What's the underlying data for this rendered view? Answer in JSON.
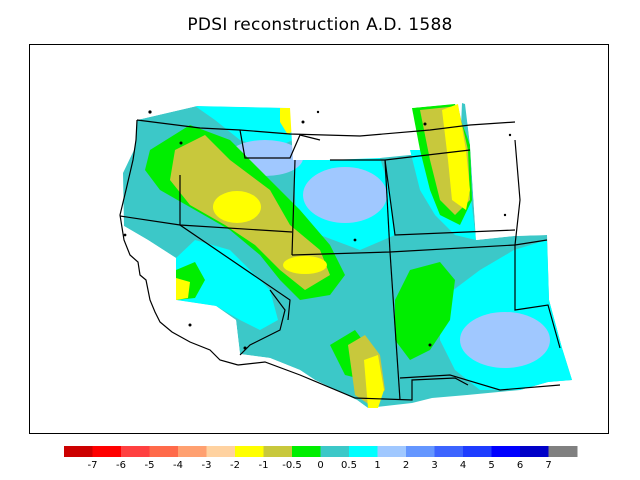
{
  "title": "PDSI reconstruction A.D. 1588",
  "legend": {
    "colors": [
      "#cc0000",
      "#ff0000",
      "#ff4040",
      "#ff6a4a",
      "#ffa070",
      "#ffd2a0",
      "#ffff00",
      "#c8c83c",
      "#00ee00",
      "#3cc8c8",
      "#00ffff",
      "#a0c8ff",
      "#6496ff",
      "#3c64ff",
      "#1e3cff",
      "#0000ff",
      "#0000c8",
      "#808080"
    ],
    "tick_labels": [
      "-7",
      "-6",
      "-5",
      "-4",
      "-3",
      "-2",
      "-1",
      "-0.5",
      "0",
      "0.5",
      "1",
      "2",
      "3",
      "4",
      "5",
      "6",
      "7"
    ]
  }
}
